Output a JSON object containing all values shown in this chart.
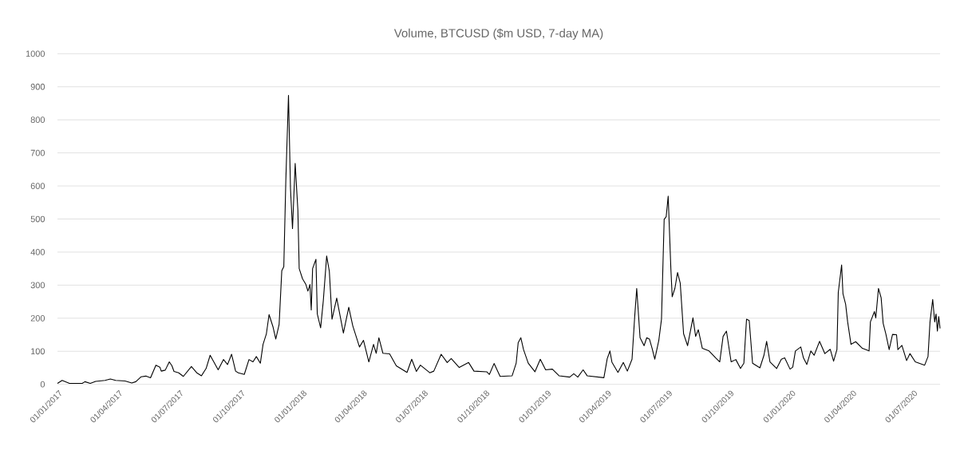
{
  "chart_data": {
    "type": "line",
    "title": "Volume, BTCUSD ($m USD, 7-day MA)",
    "xlim": [
      "2017-01-01",
      "2020-08-11"
    ],
    "ylim": [
      0,
      1000
    ],
    "yticks": [
      0,
      100,
      200,
      300,
      400,
      500,
      600,
      700,
      800,
      900,
      1000
    ],
    "xticks": [
      {
        "value": "2017-01-01",
        "label": "01/01/2017"
      },
      {
        "value": "2017-04-01",
        "label": "01/04/2017"
      },
      {
        "value": "2017-07-01",
        "label": "01/07/2017"
      },
      {
        "value": "2017-10-01",
        "label": "01/10/2017"
      },
      {
        "value": "2018-01-01",
        "label": "01/01/2018"
      },
      {
        "value": "2018-04-01",
        "label": "01/04/2018"
      },
      {
        "value": "2018-07-01",
        "label": "01/07/2018"
      },
      {
        "value": "2018-10-01",
        "label": "01/10/2018"
      },
      {
        "value": "2019-01-01",
        "label": "01/01/2019"
      },
      {
        "value": "2019-04-01",
        "label": "01/04/2019"
      },
      {
        "value": "2019-07-01",
        "label": "01/07/2019"
      },
      {
        "value": "2019-10-01",
        "label": "01/10/2019"
      },
      {
        "value": "2020-01-01",
        "label": "01/01/2020"
      },
      {
        "value": "2020-04-01",
        "label": "01/04/2020"
      },
      {
        "value": "2020-07-01",
        "label": "01/07/2020"
      }
    ],
    "grid": "y",
    "legend": false,
    "marker": "none",
    "line_style": "solid",
    "series": [
      {
        "color": "#000000",
        "x": [
          "2017-01-01",
          "2017-01-08",
          "2017-01-19",
          "2017-02-07",
          "2017-02-11",
          "2017-02-19",
          "2017-02-27",
          "2017-03-13",
          "2017-03-21",
          "2017-03-29",
          "2017-04-12",
          "2017-04-22",
          "2017-04-28",
          "2017-05-06",
          "2017-05-13",
          "2017-05-20",
          "2017-05-28",
          "2017-06-03",
          "2017-06-05",
          "2017-06-11",
          "2017-06-17",
          "2017-06-21",
          "2017-06-24",
          "2017-07-01",
          "2017-07-08",
          "2017-07-20",
          "2017-07-28",
          "2017-08-04",
          "2017-08-11",
          "2017-08-17",
          "2017-08-29",
          "2017-09-06",
          "2017-09-12",
          "2017-09-18",
          "2017-09-24",
          "2017-09-28",
          "2017-10-07",
          "2017-10-14",
          "2017-10-20",
          "2017-10-25",
          "2017-10-31",
          "2017-11-04",
          "2017-11-09",
          "2017-11-13",
          "2017-11-19",
          "2017-11-23",
          "2017-11-28",
          "2017-12-02",
          "2017-12-05",
          "2017-12-08",
          "2017-12-12",
          "2017-12-15",
          "2017-12-18",
          "2017-12-22",
          "2017-12-26",
          "2017-12-28",
          "2018-01-02",
          "2018-01-07",
          "2018-01-10",
          "2018-01-13",
          "2018-01-15",
          "2018-01-17",
          "2018-01-22",
          "2018-01-24",
          "2018-01-29",
          "2018-02-02",
          "2018-02-07",
          "2018-02-11",
          "2018-02-15",
          "2018-02-22",
          "2018-03-04",
          "2018-03-12",
          "2018-03-18",
          "2018-03-28",
          "2018-04-03",
          "2018-04-11",
          "2018-04-18",
          "2018-04-22",
          "2018-04-26",
          "2018-05-02",
          "2018-05-12",
          "2018-05-22",
          "2018-06-07",
          "2018-06-14",
          "2018-06-21",
          "2018-06-27",
          "2018-07-11",
          "2018-07-17",
          "2018-07-28",
          "2018-08-06",
          "2018-08-12",
          "2018-08-24",
          "2018-09-07",
          "2018-09-15",
          "2018-10-04",
          "2018-10-08",
          "2018-10-15",
          "2018-10-24",
          "2018-11-11",
          "2018-11-17",
          "2018-11-20",
          "2018-11-24",
          "2018-11-28",
          "2018-12-05",
          "2018-12-15",
          "2018-12-23",
          "2018-12-31",
          "2019-01-10",
          "2019-01-20",
          "2019-02-05",
          "2019-02-11",
          "2019-02-17",
          "2019-02-25",
          "2019-03-03",
          "2019-03-28",
          "2019-04-02",
          "2019-04-06",
          "2019-04-09",
          "2019-04-18",
          "2019-04-26",
          "2019-05-02",
          "2019-05-09",
          "2019-05-13",
          "2019-05-16",
          "2019-05-21",
          "2019-05-27",
          "2019-05-31",
          "2019-06-04",
          "2019-06-08",
          "2019-06-12",
          "2019-06-18",
          "2019-06-22",
          "2019-06-26",
          "2019-06-29",
          "2019-07-02",
          "2019-07-06",
          "2019-07-08",
          "2019-07-12",
          "2019-07-16",
          "2019-07-20",
          "2019-07-25",
          "2019-07-31",
          "2019-08-08",
          "2019-08-12",
          "2019-08-16",
          "2019-08-22",
          "2019-09-01",
          "2019-09-11",
          "2019-09-17",
          "2019-09-22",
          "2019-09-27",
          "2019-10-04",
          "2019-10-11",
          "2019-10-18",
          "2019-10-23",
          "2019-10-27",
          "2019-10-31",
          "2019-11-05",
          "2019-11-16",
          "2019-11-22",
          "2019-11-26",
          "2019-12-01",
          "2019-12-11",
          "2019-12-18",
          "2019-12-23",
          "2019-12-31",
          "2020-01-04",
          "2020-01-08",
          "2020-01-16",
          "2020-01-20",
          "2020-01-25",
          "2020-01-31",
          "2020-02-05",
          "2020-02-13",
          "2020-02-21",
          "2020-02-29",
          "2020-03-05",
          "2020-03-10",
          "2020-03-12",
          "2020-03-17",
          "2020-03-19",
          "2020-03-23",
          "2020-03-26",
          "2020-03-31",
          "2020-04-07",
          "2020-04-17",
          "2020-04-27",
          "2020-04-29",
          "2020-05-05",
          "2020-05-07",
          "2020-05-11",
          "2020-05-15",
          "2020-05-18",
          "2020-05-22",
          "2020-05-27",
          "2020-06-01",
          "2020-06-07",
          "2020-06-09",
          "2020-06-15",
          "2020-06-22",
          "2020-06-27",
          "2020-07-05",
          "2020-07-19",
          "2020-07-24",
          "2020-07-27",
          "2020-07-31",
          "2020-08-03",
          "2020-08-05",
          "2020-08-07",
          "2020-08-09",
          "2020-08-11"
        ],
        "values": [
          3,
          12,
          3,
          3,
          8,
          3,
          9,
          12,
          16,
          12,
          10,
          4,
          8,
          23,
          25,
          20,
          58,
          52,
          40,
          43,
          68,
          56,
          39,
          35,
          24,
          54,
          35,
          26,
          48,
          88,
          44,
          75,
          60,
          91,
          40,
          35,
          30,
          75,
          68,
          84,
          64,
          121,
          153,
          211,
          173,
          137,
          181,
          344,
          356,
          615,
          874,
          591,
          471,
          668,
          527,
          350,
          319,
          302,
          282,
          302,
          225,
          350,
          378,
          213,
          171,
          253,
          388,
          342,
          197,
          261,
          155,
          233,
          177,
          113,
          133,
          68,
          121,
          94,
          141,
          94,
          92,
          56,
          36,
          76,
          39,
          58,
          35,
          40,
          91,
          66,
          78,
          51,
          66,
          40,
          38,
          30,
          63,
          24,
          26,
          64,
          126,
          141,
          105,
          64,
          38,
          76,
          44,
          46,
          26,
          22,
          32,
          22,
          44,
          26,
          20,
          78,
          101,
          67,
          36,
          66,
          40,
          76,
          205,
          290,
          141,
          117,
          141,
          137,
          109,
          76,
          133,
          197,
          499,
          507,
          569,
          350,
          265,
          290,
          338,
          306,
          153,
          117,
          201,
          145,
          165,
          109,
          101,
          80,
          68,
          145,
          161,
          68,
          75,
          48,
          64,
          197,
          193,
          64,
          50,
          88,
          130,
          68,
          48,
          76,
          80,
          46,
          52,
          101,
          113,
          80,
          60,
          101,
          88,
          130,
          93,
          106,
          70,
          105,
          278,
          361,
          274,
          242,
          189,
          121,
          129,
          109,
          101,
          189,
          220,
          201,
          290,
          262,
          185,
          153,
          105,
          151,
          150,
          105,
          118,
          72,
          93,
          68,
          58,
          84,
          189,
          257,
          189,
          213,
          161,
          205,
          169
        ]
      }
    ]
  }
}
